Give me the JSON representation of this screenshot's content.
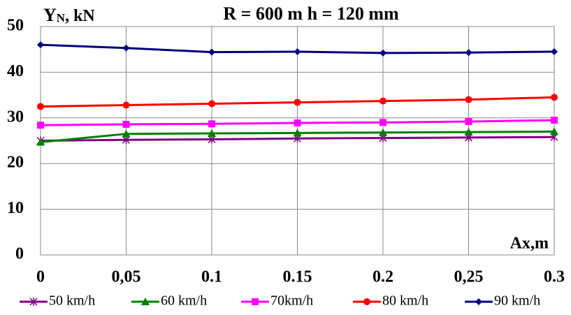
{
  "chart_data": {
    "type": "line",
    "title": "R = 600 m  h = 120 mm",
    "y_label_parts": [
      "Y",
      "N",
      ", kN"
    ],
    "x_label": "Ax,m",
    "x": [
      0,
      0.05,
      0.1,
      0.15,
      0.2,
      0.25,
      0.3
    ],
    "xlim": [
      0,
      0.3
    ],
    "xticks": [
      0,
      {
        "value": 0.05,
        "label": "0,05"
      },
      0.1,
      0.15,
      0.2,
      {
        "value": 0.25,
        "label": "0,25"
      },
      0.3
    ],
    "ylim": [
      0,
      50
    ],
    "yticks": [
      0,
      10,
      20,
      30,
      40,
      50
    ],
    "grid": true,
    "legend": "bottom",
    "series": [
      {
        "name": "50 km/h",
        "color": "#800080",
        "marker": "star",
        "values": [
          25.0,
          25.2,
          25.3,
          25.5,
          25.6,
          25.7,
          25.8
        ]
      },
      {
        "name": "60 km/h",
        "color": "#008000",
        "marker": "triangle",
        "values": [
          24.7,
          26.5,
          26.6,
          26.7,
          26.8,
          26.9,
          27.0
        ]
      },
      {
        "name": "70km/h",
        "color": "#ff00ff",
        "marker": "square",
        "values": [
          28.4,
          28.6,
          28.7,
          28.9,
          29.0,
          29.2,
          29.5
        ]
      },
      {
        "name": "80 km/h",
        "color": "#ff0000",
        "marker": "circle",
        "values": [
          32.5,
          32.8,
          33.1,
          33.4,
          33.7,
          34.0,
          34.5
        ]
      },
      {
        "name": "90 km/h",
        "color": "#000080",
        "marker": "diamond",
        "values": [
          46.0,
          45.3,
          44.4,
          44.5,
          44.2,
          44.3,
          44.5
        ]
      }
    ]
  }
}
